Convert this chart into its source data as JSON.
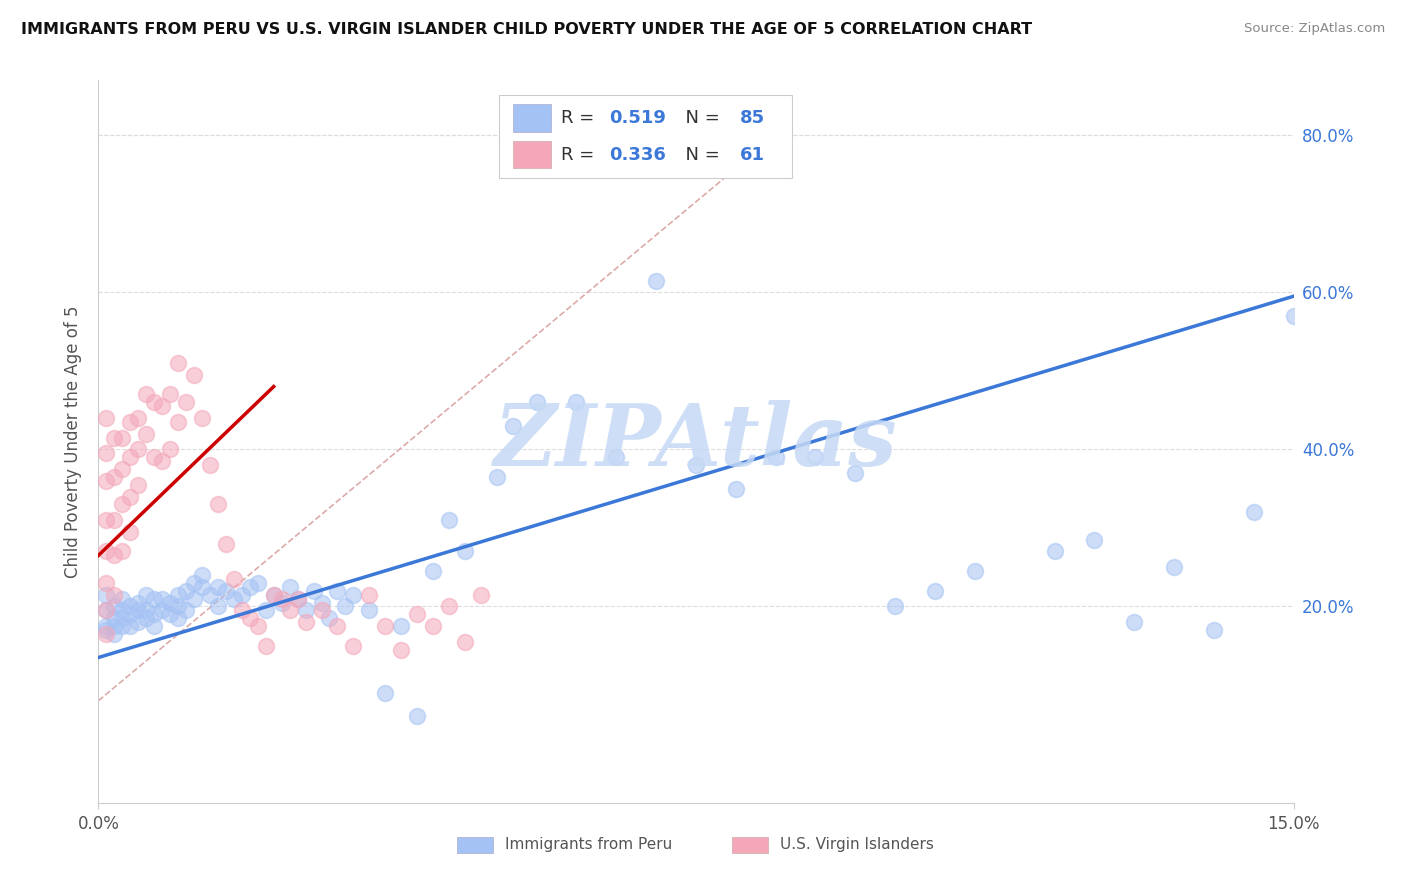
{
  "title": "IMMIGRANTS FROM PERU VS U.S. VIRGIN ISLANDER CHILD POVERTY UNDER THE AGE OF 5 CORRELATION CHART",
  "source": "Source: ZipAtlas.com",
  "ylabel": "Child Poverty Under the Age of 5",
  "xlim": [
    0.0,
    0.15
  ],
  "ylim": [
    -0.05,
    0.87
  ],
  "plot_ylim": [
    -0.05,
    0.87
  ],
  "yticks": [
    0.2,
    0.4,
    0.6,
    0.8
  ],
  "xticks": [
    0.0,
    0.15
  ],
  "blue_R": "0.519",
  "blue_N": "85",
  "pink_R": "0.336",
  "pink_N": "61",
  "blue_scatter_color": "#a4c2f4",
  "pink_scatter_color": "#f4a7b9",
  "blue_line_color": "#3c78d8",
  "pink_line_color": "#cc0000",
  "diag_line_color": "#ddaaaa",
  "legend_label_blue": "Immigrants from Peru",
  "legend_label_pink": "U.S. Virgin Islanders",
  "legend_text_color": "#3c78d8",
  "watermark_text": "ZIPAtlas",
  "watermark_color": "#c5d9f5",
  "bg_color": "#ffffff",
  "grid_color": "#dddddd",
  "axis_text_color": "#3c78d8",
  "title_color": "#111111",
  "source_color": "#888888",
  "ylabel_color": "#555555",
  "blue_scatter_x": [
    0.001,
    0.001,
    0.001,
    0.001,
    0.002,
    0.002,
    0.002,
    0.002,
    0.003,
    0.003,
    0.003,
    0.003,
    0.004,
    0.004,
    0.004,
    0.005,
    0.005,
    0.005,
    0.006,
    0.006,
    0.006,
    0.007,
    0.007,
    0.007,
    0.008,
    0.008,
    0.009,
    0.009,
    0.01,
    0.01,
    0.01,
    0.011,
    0.011,
    0.012,
    0.012,
    0.013,
    0.013,
    0.014,
    0.015,
    0.015,
    0.016,
    0.017,
    0.018,
    0.019,
    0.02,
    0.021,
    0.022,
    0.023,
    0.024,
    0.025,
    0.026,
    0.027,
    0.028,
    0.029,
    0.03,
    0.031,
    0.032,
    0.034,
    0.036,
    0.038,
    0.04,
    0.042,
    0.044,
    0.046,
    0.05,
    0.052,
    0.055,
    0.06,
    0.065,
    0.07,
    0.075,
    0.08,
    0.085,
    0.09,
    0.095,
    0.1,
    0.105,
    0.11,
    0.12,
    0.125,
    0.13,
    0.135,
    0.14,
    0.145,
    0.15
  ],
  "blue_scatter_y": [
    0.195,
    0.215,
    0.17,
    0.175,
    0.185,
    0.2,
    0.175,
    0.165,
    0.195,
    0.21,
    0.175,
    0.185,
    0.19,
    0.2,
    0.175,
    0.205,
    0.195,
    0.18,
    0.215,
    0.195,
    0.185,
    0.21,
    0.19,
    0.175,
    0.21,
    0.195,
    0.205,
    0.19,
    0.215,
    0.2,
    0.185,
    0.22,
    0.195,
    0.23,
    0.21,
    0.24,
    0.225,
    0.215,
    0.225,
    0.2,
    0.22,
    0.21,
    0.215,
    0.225,
    0.23,
    0.195,
    0.215,
    0.205,
    0.225,
    0.21,
    0.195,
    0.22,
    0.205,
    0.185,
    0.22,
    0.2,
    0.215,
    0.195,
    0.09,
    0.175,
    0.06,
    0.245,
    0.31,
    0.27,
    0.365,
    0.43,
    0.46,
    0.46,
    0.39,
    0.615,
    0.38,
    0.35,
    0.39,
    0.39,
    0.37,
    0.2,
    0.22,
    0.245,
    0.27,
    0.285,
    0.18,
    0.25,
    0.17,
    0.32,
    0.57
  ],
  "pink_scatter_x": [
    0.001,
    0.001,
    0.001,
    0.001,
    0.001,
    0.001,
    0.001,
    0.001,
    0.002,
    0.002,
    0.002,
    0.002,
    0.002,
    0.003,
    0.003,
    0.003,
    0.003,
    0.004,
    0.004,
    0.004,
    0.004,
    0.005,
    0.005,
    0.005,
    0.006,
    0.006,
    0.007,
    0.007,
    0.008,
    0.008,
    0.009,
    0.009,
    0.01,
    0.01,
    0.011,
    0.012,
    0.013,
    0.014,
    0.015,
    0.016,
    0.017,
    0.018,
    0.019,
    0.02,
    0.021,
    0.022,
    0.023,
    0.024,
    0.025,
    0.026,
    0.028,
    0.03,
    0.032,
    0.034,
    0.036,
    0.038,
    0.04,
    0.042,
    0.044,
    0.046,
    0.048
  ],
  "pink_scatter_y": [
    0.44,
    0.395,
    0.36,
    0.31,
    0.27,
    0.23,
    0.195,
    0.165,
    0.415,
    0.365,
    0.31,
    0.265,
    0.215,
    0.415,
    0.375,
    0.33,
    0.27,
    0.435,
    0.39,
    0.34,
    0.295,
    0.44,
    0.4,
    0.355,
    0.47,
    0.42,
    0.46,
    0.39,
    0.455,
    0.385,
    0.47,
    0.4,
    0.51,
    0.435,
    0.46,
    0.495,
    0.44,
    0.38,
    0.33,
    0.28,
    0.235,
    0.195,
    0.185,
    0.175,
    0.15,
    0.215,
    0.21,
    0.195,
    0.21,
    0.18,
    0.195,
    0.175,
    0.15,
    0.215,
    0.175,
    0.145,
    0.19,
    0.175,
    0.2,
    0.155,
    0.215
  ],
  "blue_trend_x": [
    0.0,
    0.15
  ],
  "blue_trend_y": [
    0.135,
    0.595
  ],
  "pink_trend_x": [
    0.0,
    0.022
  ],
  "pink_trend_y": [
    0.265,
    0.48
  ]
}
